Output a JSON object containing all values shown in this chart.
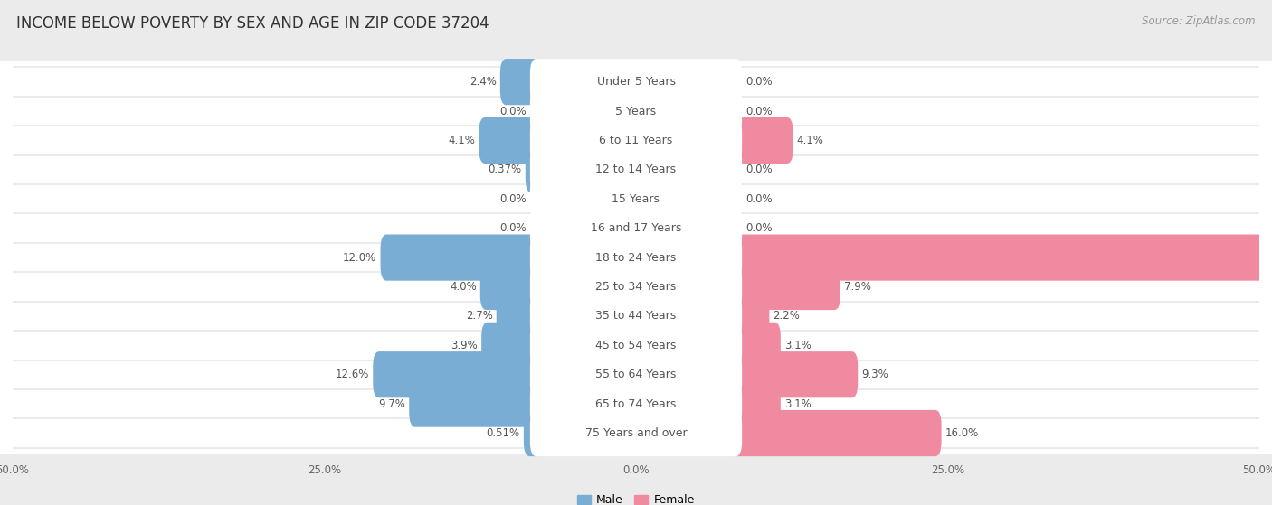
{
  "title": "INCOME BELOW POVERTY BY SEX AND AGE IN ZIP CODE 37204",
  "source": "Source: ZipAtlas.com",
  "categories": [
    "Under 5 Years",
    "5 Years",
    "6 to 11 Years",
    "12 to 14 Years",
    "15 Years",
    "16 and 17 Years",
    "18 to 24 Years",
    "25 to 34 Years",
    "35 to 44 Years",
    "45 to 54 Years",
    "55 to 64 Years",
    "65 to 74 Years",
    "75 Years and over"
  ],
  "male_values": [
    2.4,
    0.0,
    4.1,
    0.37,
    0.0,
    0.0,
    12.0,
    4.0,
    2.7,
    3.9,
    12.6,
    9.7,
    0.51
  ],
  "female_values": [
    0.0,
    0.0,
    4.1,
    0.0,
    0.0,
    0.0,
    49.2,
    7.9,
    2.2,
    3.1,
    9.3,
    3.1,
    16.0
  ],
  "male_color": "#7aadd4",
  "female_color": "#f08aa0",
  "male_label": "Male",
  "female_label": "Female",
  "xlim": 50.0,
  "background_color": "#ebebeb",
  "bar_background": "#ffffff",
  "row_bg_color": "#f5f5f5",
  "label_fontsize": 9.0,
  "title_fontsize": 12,
  "source_fontsize": 8.5,
  "value_fontsize": 8.5
}
